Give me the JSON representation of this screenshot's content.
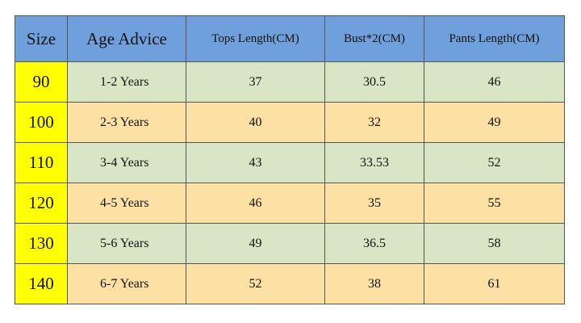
{
  "table": {
    "headers": [
      "Size",
      "Age Advice",
      "Tops Length(CM)",
      "Bust*2(CM)",
      "Pants Length(CM)"
    ],
    "rows": [
      {
        "size": "90",
        "age": "1-2 Years",
        "tops": "37",
        "bust": "30.5",
        "pants": "46"
      },
      {
        "size": "100",
        "age": "2-3 Years",
        "tops": "40",
        "bust": "32",
        "pants": "49"
      },
      {
        "size": "110",
        "age": "3-4 Years",
        "tops": "43",
        "bust": "33.53",
        "pants": "52"
      },
      {
        "size": "120",
        "age": "4-5 Years",
        "tops": "46",
        "bust": "35",
        "pants": "55"
      },
      {
        "size": "130",
        "age": "5-6 Years",
        "tops": "49",
        "bust": "36.5",
        "pants": "58"
      },
      {
        "size": "140",
        "age": "6-7 Years",
        "tops": "52",
        "bust": "38",
        "pants": "61"
      }
    ]
  },
  "colors": {
    "header_bg": "#6fa0dc",
    "size_column_bg": "#ffff00",
    "row_green_bg": "#d9e6c5",
    "row_orange_bg": "#fde1a4"
  }
}
